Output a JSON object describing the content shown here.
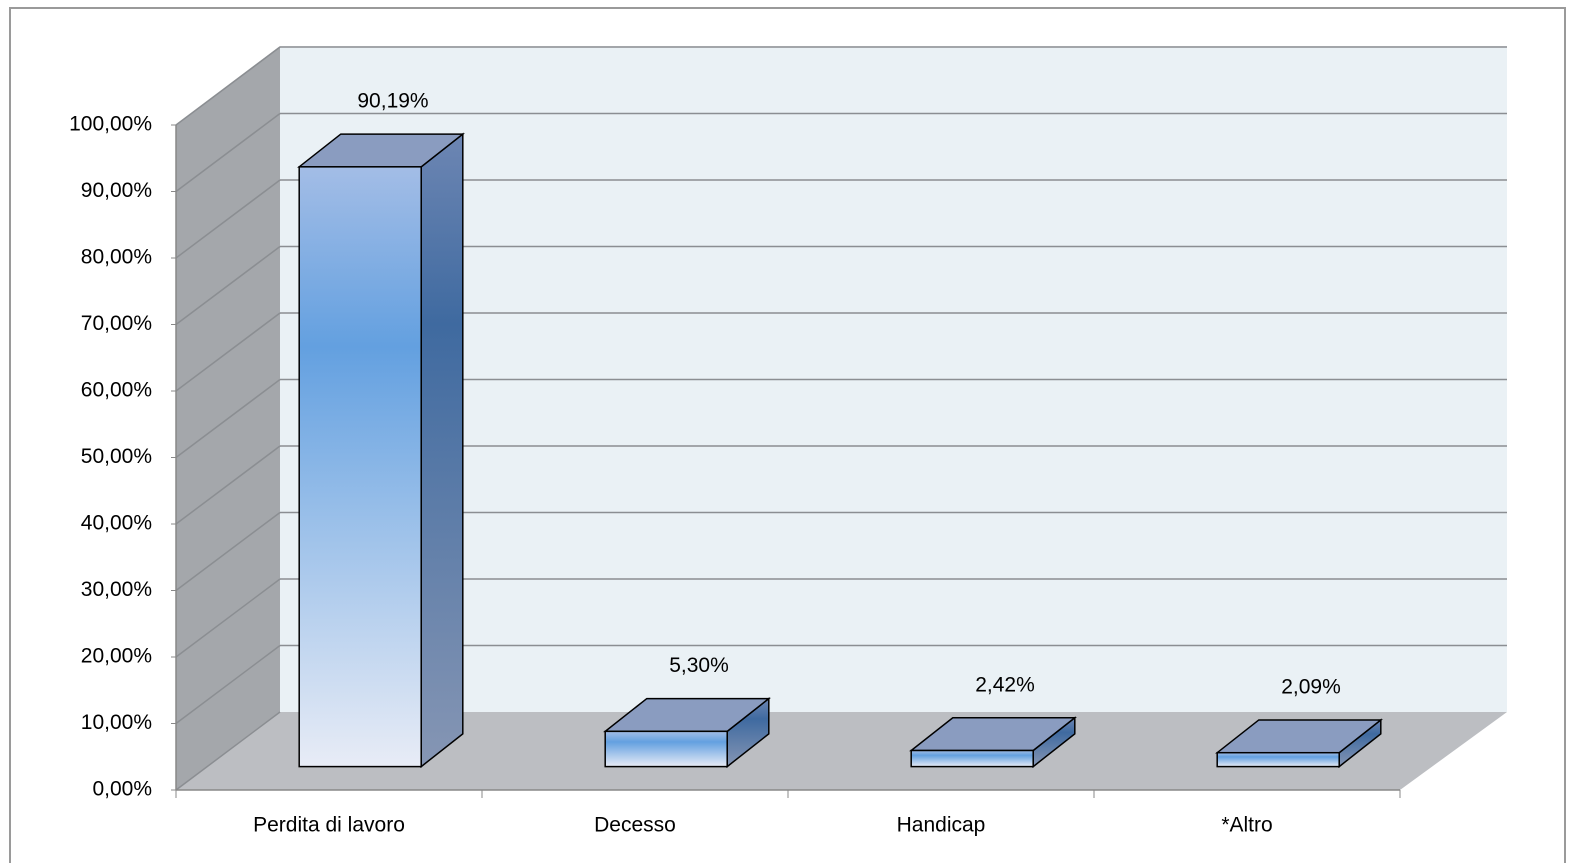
{
  "chart_data": {
    "type": "bar3d",
    "categories": [
      "Perdita di lavoro",
      "Decesso",
      "Handicap",
      "*Altro"
    ],
    "values": [
      90.19,
      5.3,
      2.42,
      2.09
    ],
    "value_labels": [
      "90,19%",
      "5,30%",
      "2,42%",
      "2,09%"
    ],
    "color": "#5b9bd5",
    "ylim": [
      0,
      100
    ],
    "yticks": [
      {
        "value": 0,
        "label": "0,00%"
      },
      {
        "value": 10,
        "label": "10,00%"
      },
      {
        "value": 20,
        "label": "20,00%"
      },
      {
        "value": 30,
        "label": "30,00%"
      },
      {
        "value": 40,
        "label": "40,00%"
      },
      {
        "value": 50,
        "label": "50,00%"
      },
      {
        "value": 60,
        "label": "60,00%"
      },
      {
        "value": 70,
        "label": "70,00%"
      },
      {
        "value": 80,
        "label": "80,00%"
      },
      {
        "value": 90,
        "label": "90,00%"
      },
      {
        "value": 100,
        "label": "100,00%"
      }
    ],
    "grid": true
  }
}
